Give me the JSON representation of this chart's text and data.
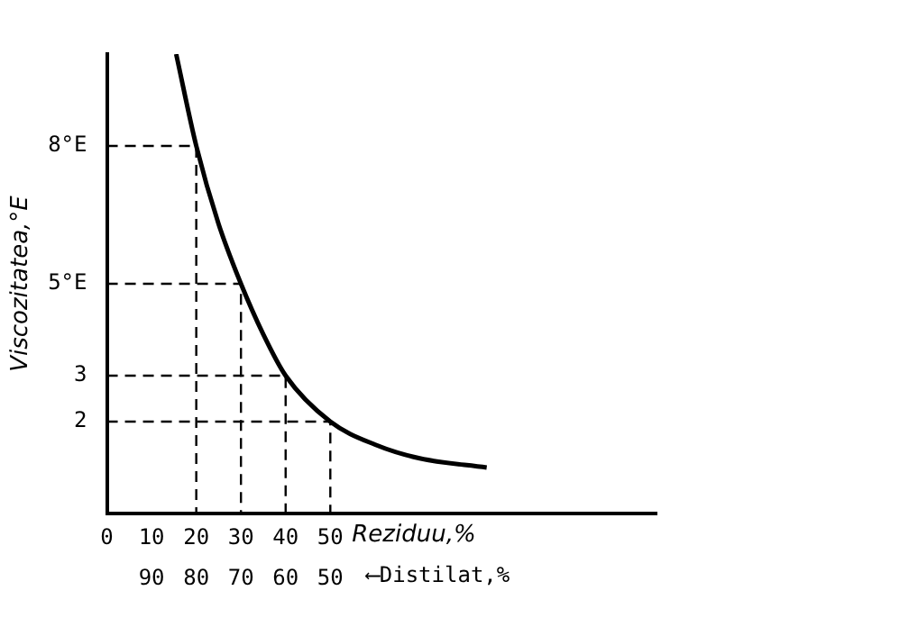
{
  "chart_data": {
    "type": "line",
    "xlabel": "Reziduu,%",
    "ylabel": "Viscozitatea,°E",
    "x2label": "⟵Distilat,%",
    "xlim": [
      0,
      123
    ],
    "xticks": [
      0,
      10,
      20,
      30,
      40,
      50
    ],
    "x2lim": [
      100,
      -23
    ],
    "x2ticks": [
      90,
      80,
      70,
      60,
      50
    ],
    "ylim": [
      0,
      10
    ],
    "yticks": [
      2,
      3,
      {
        "value": 5,
        "label": "5°E"
      },
      {
        "value": 8,
        "label": "8°E"
      }
    ],
    "grid": false,
    "legend": false,
    "marker": "none",
    "series": [
      {
        "color": "#000000",
        "line_style": "solid",
        "x": [
          15.5,
          20,
          25,
          30,
          35,
          40,
          50,
          60,
          70,
          85
        ],
        "values": [
          10,
          8,
          6.3,
          5,
          3.9,
          3,
          2,
          1.5,
          1.2,
          1.0
        ]
      },
      {
        "color": "#000000",
        "line_style": "dashed",
        "x": [
          0,
          20,
          20
        ],
        "values": [
          8,
          8,
          0
        ]
      },
      {
        "color": "#000000",
        "line_style": "dashed",
        "x": [
          0,
          30,
          30
        ],
        "values": [
          5,
          5,
          0
        ]
      },
      {
        "color": "#000000",
        "line_style": "dashed",
        "x": [
          0,
          40,
          40
        ],
        "values": [
          3,
          3,
          0
        ]
      },
      {
        "color": "#000000",
        "line_style": "dashed",
        "x": [
          0,
          50,
          50
        ],
        "values": [
          2,
          2,
          0
        ]
      }
    ]
  }
}
